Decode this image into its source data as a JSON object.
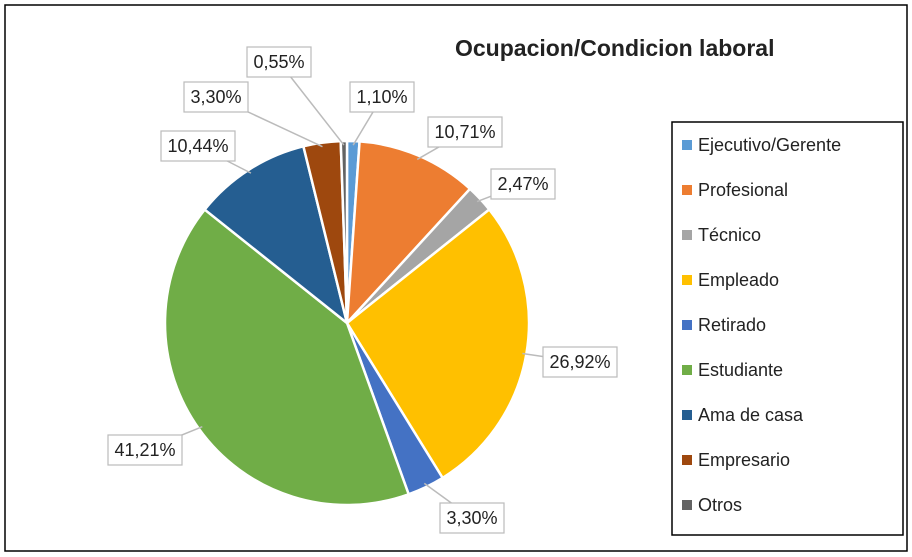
{
  "chart_data": {
    "type": "pie",
    "title": "Ocupacion/Condicion laboral",
    "categories": [
      "Ejecutivo/Gerente",
      "Profesional",
      "Técnico",
      "Empleado",
      "Retirado",
      "Estudiante",
      "Ama de casa",
      "Empresario",
      "Otros"
    ],
    "values": [
      1.1,
      10.71,
      2.47,
      26.92,
      3.3,
      41.21,
      10.44,
      3.3,
      0.55
    ],
    "value_labels": [
      "1,10%",
      "10,71%",
      "2,47%",
      "26,92%",
      "3,30%",
      "41,21%",
      "10,44%",
      "3,30%",
      "0,55%"
    ],
    "colors": [
      "#5B9BD5",
      "#ED7D31",
      "#A5A5A5",
      "#FFC000",
      "#4472C4",
      "#70AD47",
      "#255E91",
      "#9E480E",
      "#636363"
    ],
    "legend": "right"
  }
}
